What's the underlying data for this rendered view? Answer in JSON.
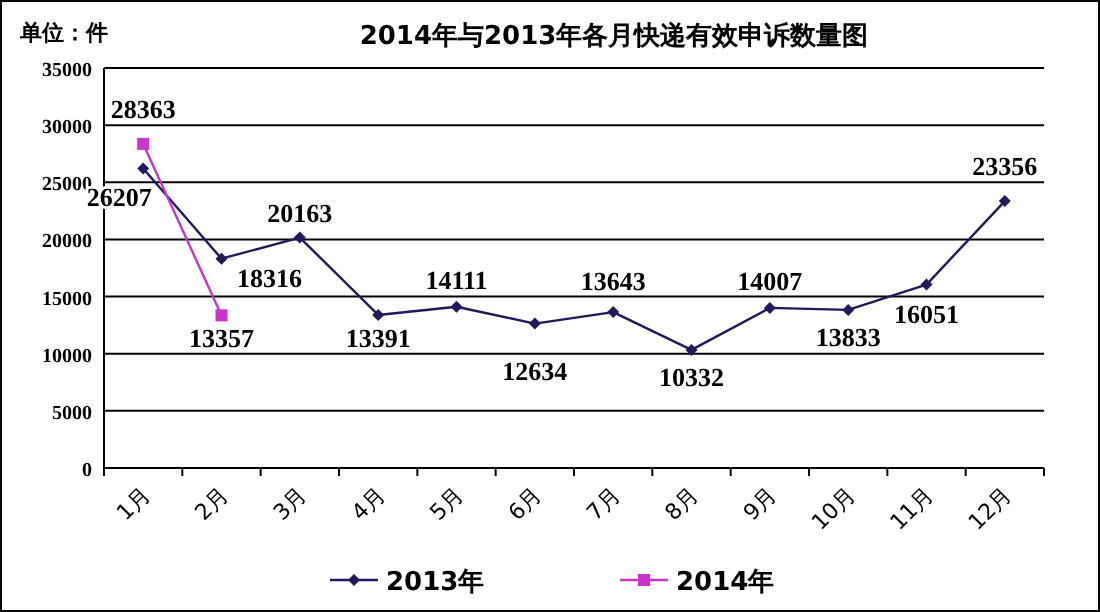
{
  "chart_data": {
    "type": "line",
    "title": "2014年与2013年各月快递有效申诉数量图",
    "annotations": [
      "单位：件"
    ],
    "categories": [
      "1月",
      "2月",
      "3月",
      "4月",
      "5月",
      "6月",
      "7月",
      "8月",
      "9月",
      "10月",
      "11月",
      "12月"
    ],
    "series": [
      {
        "name": "2013年",
        "color": "#1f1a5e",
        "marker": "diamond",
        "values": [
          26207,
          18316,
          20163,
          13391,
          14111,
          12634,
          13643,
          10332,
          14007,
          13833,
          16051,
          23356
        ]
      },
      {
        "name": "2014年",
        "color": "#cc33cc",
        "marker": "square",
        "values": [
          28363,
          13357,
          null,
          null,
          null,
          null,
          null,
          null,
          null,
          null,
          null,
          null
        ]
      }
    ],
    "ylim": [
      0,
      35000
    ],
    "yticks": [
      0,
      5000,
      10000,
      15000,
      20000,
      25000,
      30000,
      35000
    ],
    "grid": "y",
    "legend": "bottom",
    "data_labels": true
  }
}
